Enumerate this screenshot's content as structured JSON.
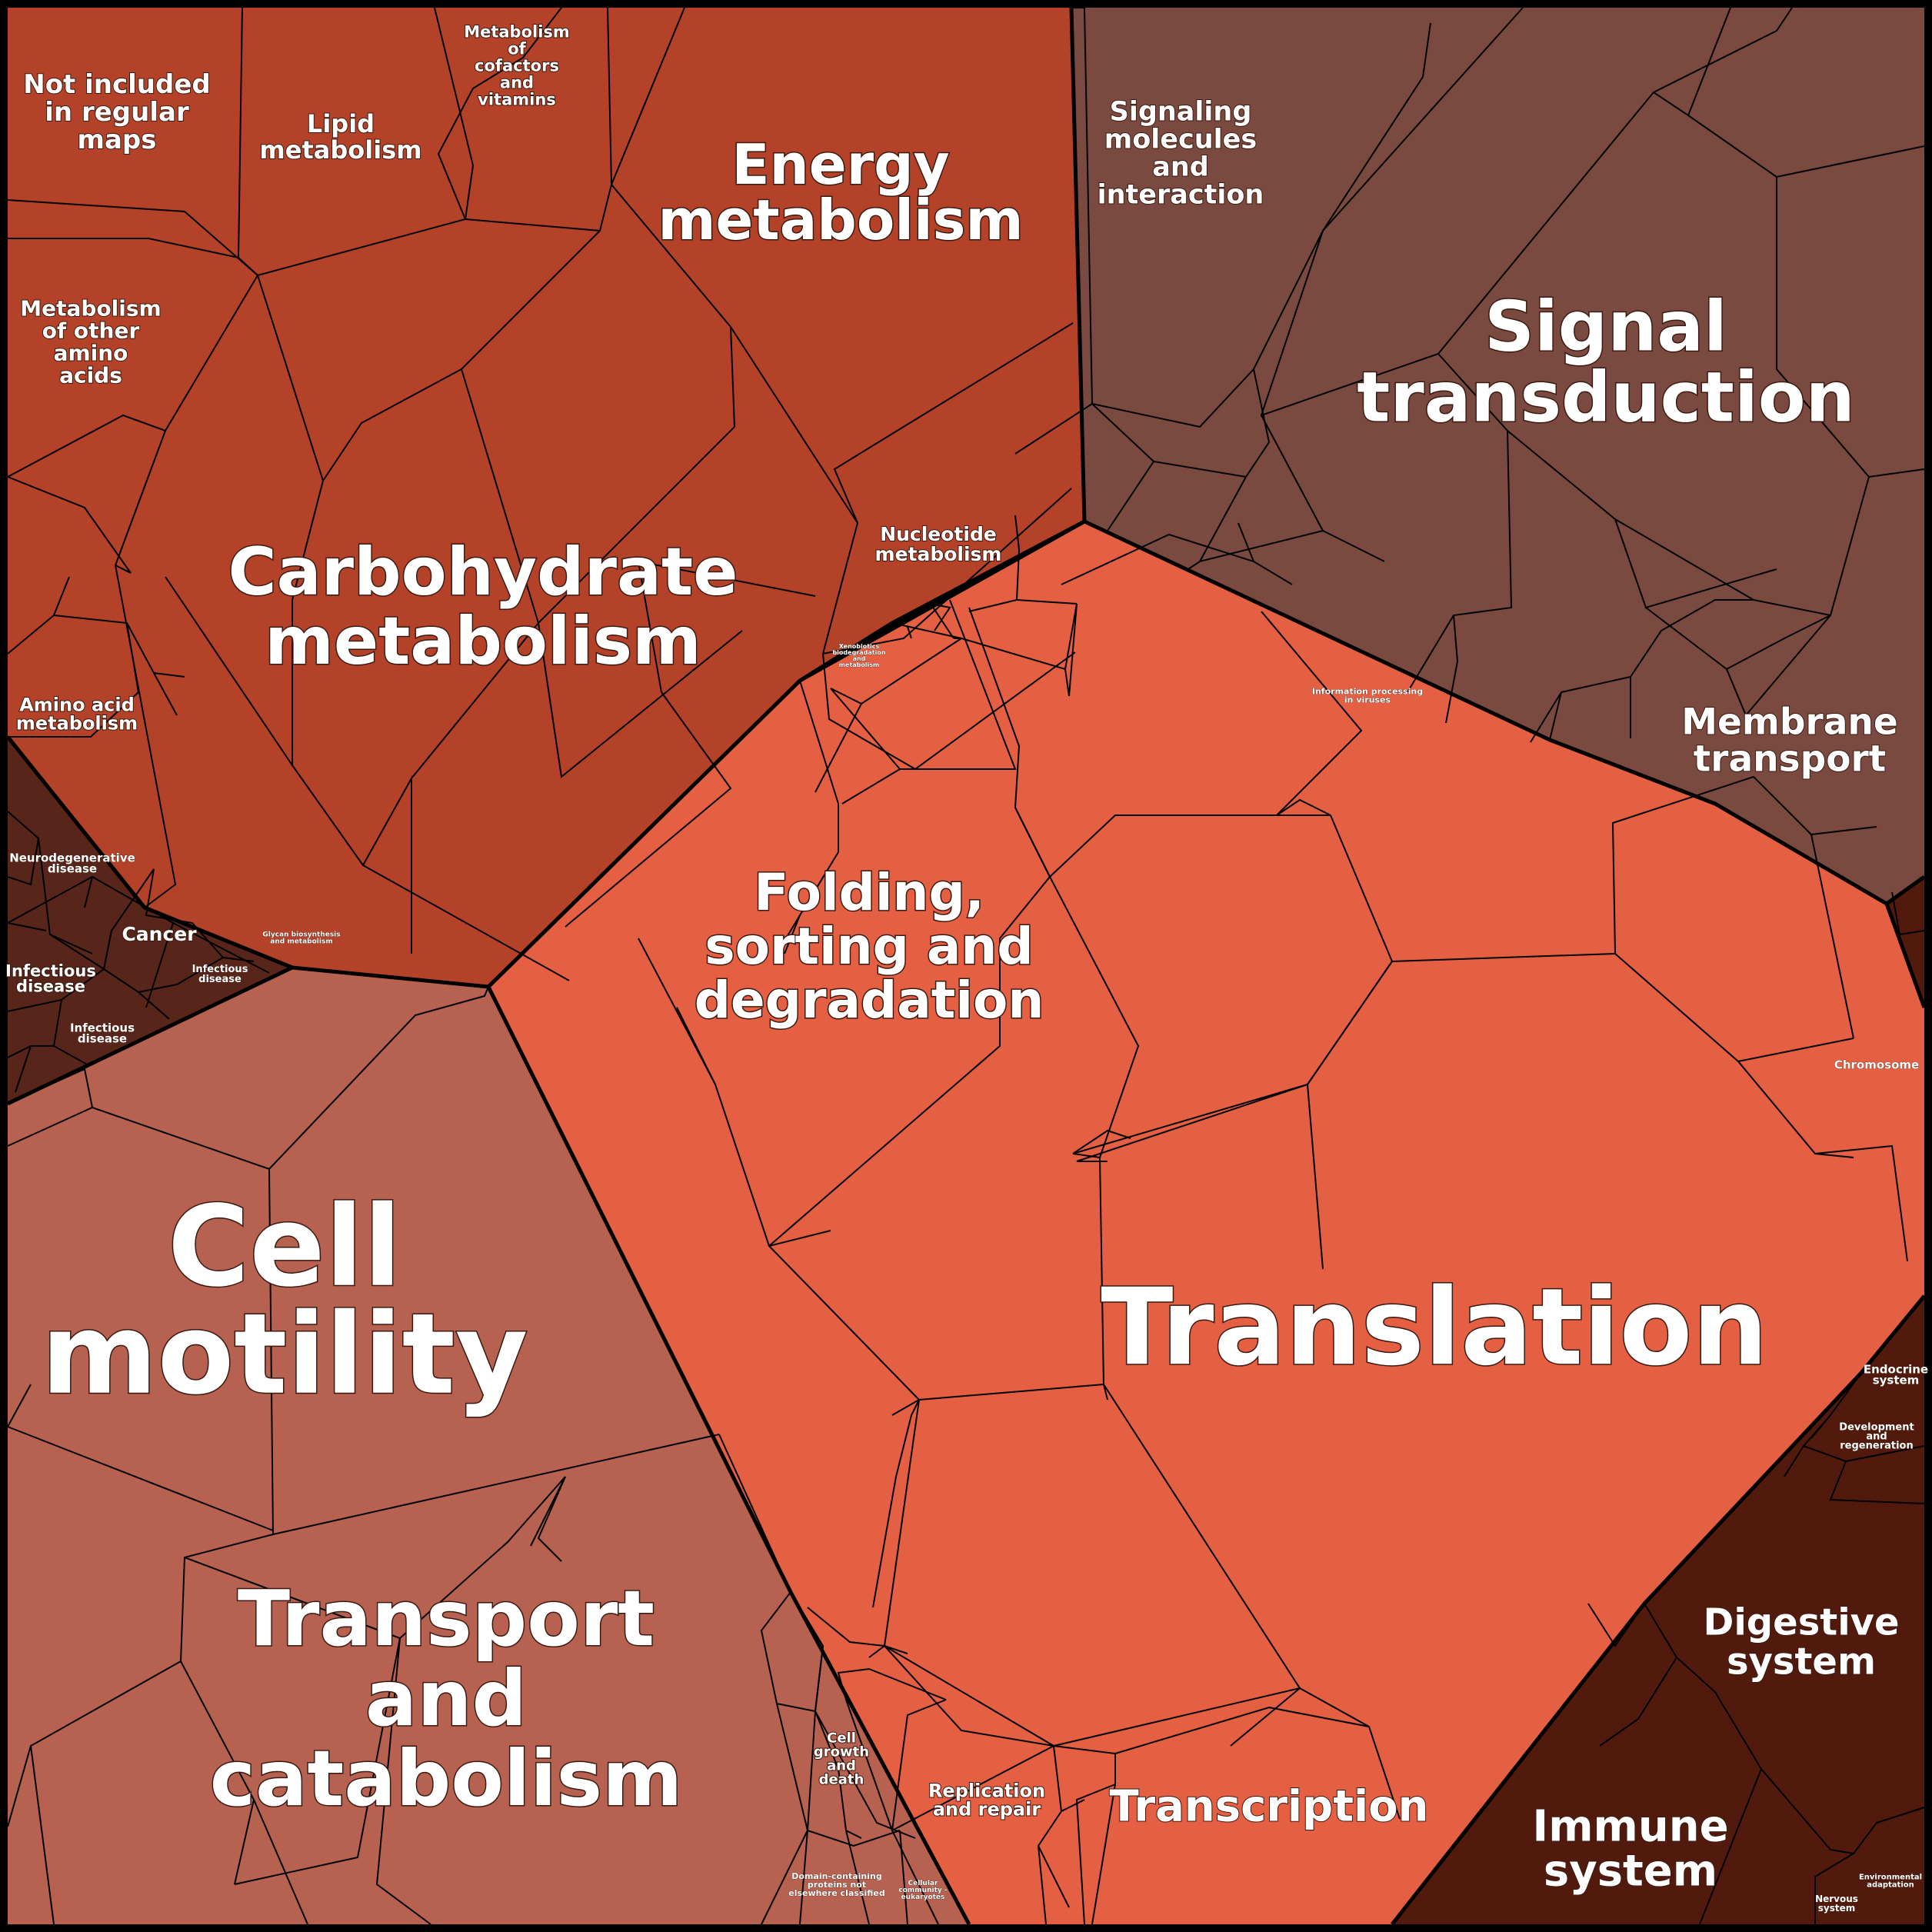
{
  "colors": {
    "metabolism": "#b34228",
    "environmental_processing": "#7a4a40",
    "genetic_processing": "#e55f42",
    "cellular_processes": "#b76150",
    "human_diseases": "#58251a",
    "organismal_systems": "#521a0c",
    "outline": "#000000"
  },
  "labels": {
    "not_included": [
      "Not included",
      "in regular",
      "maps"
    ],
    "lipid": [
      "Lipid",
      "metabolism"
    ],
    "cofactors": [
      "Metabolism",
      "of",
      "cofactors",
      "and",
      "vitamins"
    ],
    "energy": [
      "Energy",
      "metabolism"
    ],
    "signaling_molecules": [
      "Signaling",
      "molecules",
      "and",
      "interaction"
    ],
    "signal_transduction": [
      "Signal",
      "transduction"
    ],
    "other_amino_acids": [
      "Metabolism",
      "of other",
      "amino",
      "acids"
    ],
    "carbohydrate": [
      "Carbohydrate",
      "metabolism"
    ],
    "nucleotide": [
      "Nucleotide",
      "metabolism"
    ],
    "xenobiotics": [
      "Xenobiotics",
      "biodegradation",
      "and",
      "metabolism"
    ],
    "amino_acid": [
      "Amino acid",
      "metabolism"
    ],
    "info_processing_viruses": [
      "Information processing",
      "in viruses"
    ],
    "membrane_transport": [
      "Membrane",
      "transport"
    ],
    "neurodegenerative": [
      "Neurodegenerative",
      "disease"
    ],
    "cancer": [
      "Cancer"
    ],
    "infectious_1": [
      "Infectious",
      "disease"
    ],
    "infectious_2": [
      "Infectious",
      "disease"
    ],
    "infectious_3": [
      "Infectious",
      "disease"
    ],
    "glycan": [
      "Glycan biosynthesis",
      "and metabolism"
    ],
    "folding": [
      "Folding,",
      "sorting and",
      "degradation"
    ],
    "chromosome": [
      "Chromosome"
    ],
    "cell_motility": [
      "Cell",
      "motility"
    ],
    "translation": [
      "Translation"
    ],
    "endocrine": [
      "Endocrine",
      "system"
    ],
    "development": [
      "Development",
      "and",
      "regeneration"
    ],
    "transport_catabolism": [
      "Transport",
      "and",
      "catabolism"
    ],
    "digestive": [
      "Digestive",
      "system"
    ],
    "cell_growth": [
      "Cell",
      "growth",
      "and",
      "death"
    ],
    "replication": [
      "Replication",
      "and repair"
    ],
    "transcription": [
      "Transcription"
    ],
    "immune": [
      "Immune",
      "system"
    ],
    "domain_proteins": [
      "Domain-containing",
      "proteins not",
      "elsewhere classified"
    ],
    "cellular_community": [
      "Cellular",
      "community -",
      "eukaryotes"
    ],
    "environmental_adaptation": [
      "Environmental",
      "adaptation"
    ],
    "nervous": [
      "Nervous",
      "system"
    ]
  }
}
